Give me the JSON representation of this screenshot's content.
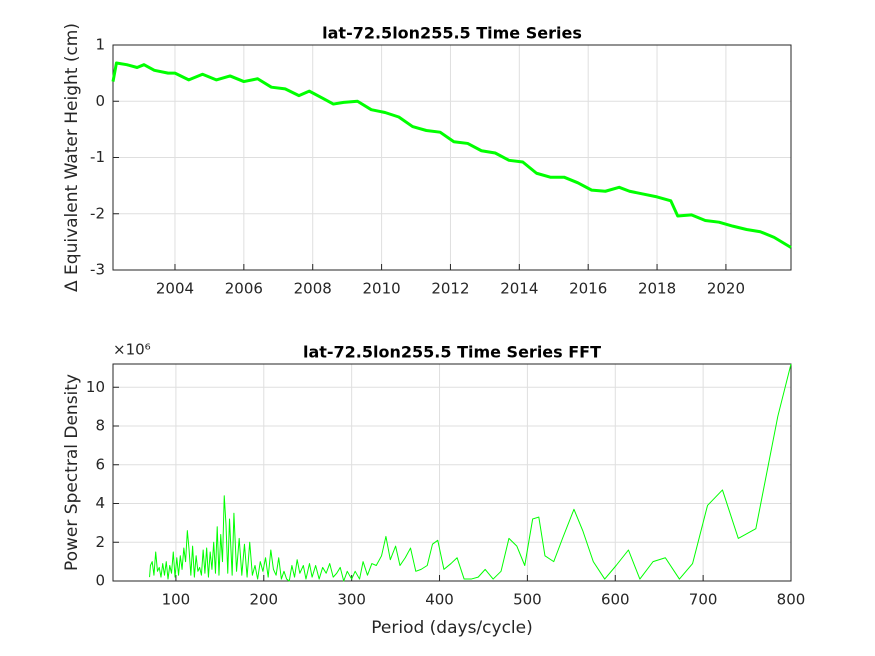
{
  "chart_data": [
    {
      "type": "line",
      "title": "lat-72.5lon255.5 Time Series",
      "ylabel": "Δ  Equivalent Water Height (cm)",
      "x": [
        2002.2,
        2002.3,
        2002.6,
        2002.9,
        2003.1,
        2003.4,
        2003.8,
        2004.0,
        2004.4,
        2004.8,
        2005.2,
        2005.6,
        2006.0,
        2006.4,
        2006.8,
        2007.2,
        2007.6,
        2007.9,
        2008.3,
        2008.6,
        2008.9,
        2009.3,
        2009.7,
        2010.1,
        2010.5,
        2010.9,
        2011.3,
        2011.7,
        2012.1,
        2012.5,
        2012.9,
        2013.3,
        2013.7,
        2014.1,
        2014.5,
        2014.9,
        2015.3,
        2015.7,
        2016.1,
        2016.5,
        2016.9,
        2017.2,
        2017.6,
        2018.0,
        2018.4,
        2018.6,
        2019.0,
        2019.4,
        2019.8,
        2020.2,
        2020.6,
        2021.0,
        2021.4,
        2021.89
      ],
      "series": [
        {
          "color": "#00ff00",
          "values": [
            0.35,
            0.68,
            0.65,
            0.6,
            0.65,
            0.55,
            0.5,
            0.5,
            0.38,
            0.48,
            0.38,
            0.45,
            0.35,
            0.4,
            0.25,
            0.22,
            0.1,
            0.18,
            0.05,
            -0.05,
            -0.02,
            0.0,
            -0.15,
            -0.2,
            -0.28,
            -0.45,
            -0.52,
            -0.55,
            -0.72,
            -0.75,
            -0.88,
            -0.92,
            -1.05,
            -1.08,
            -1.28,
            -1.35,
            -1.35,
            -1.45,
            -1.58,
            -1.6,
            -1.53,
            -1.6,
            -1.65,
            -1.7,
            -1.77,
            -2.04,
            -2.02,
            -2.12,
            -2.15,
            -2.22,
            -2.28,
            -2.32,
            -2.42,
            -2.6
          ]
        }
      ],
      "xlim": [
        2002.2,
        2021.89
      ],
      "xticks": [
        2004,
        2006,
        2008,
        2010,
        2012,
        2014,
        2016,
        2018,
        2020
      ],
      "ylim": [
        -3,
        1
      ],
      "yticks": [
        -3,
        -2,
        -1,
        0,
        1
      ],
      "grid": true
    },
    {
      "type": "line",
      "title": "lat-72.5lon255.5 Time Series FFT",
      "xlabel": "Period (days/cycle)",
      "ylabel": "Power Spectral Density",
      "y_exponent_label": "×10⁶",
      "x": [
        70,
        71,
        73,
        75,
        77,
        79,
        81,
        83,
        85,
        87,
        89,
        91,
        93,
        95,
        97,
        99,
        101,
        103,
        105,
        107,
        109,
        111,
        113,
        115,
        117,
        119,
        121,
        123,
        125,
        127,
        129,
        131,
        133,
        135,
        137,
        139,
        141,
        143,
        145,
        147,
        149,
        151,
        153,
        155,
        157,
        159,
        161,
        164,
        166,
        169,
        172,
        175,
        178,
        181,
        184,
        187,
        190,
        193,
        196,
        199,
        202,
        205,
        208,
        211,
        214,
        217,
        220,
        223,
        226,
        229,
        232,
        235,
        238,
        241,
        245,
        248,
        252,
        255,
        259,
        263,
        267,
        271,
        275,
        279,
        283,
        287,
        291,
        295,
        300,
        304,
        309,
        313,
        318,
        323,
        328,
        334,
        339,
        344,
        350,
        355,
        361,
        367,
        373,
        379,
        386,
        392,
        398,
        405,
        413,
        420,
        428,
        436,
        444,
        452,
        461,
        470,
        479,
        488,
        497,
        506,
        513,
        520,
        530,
        540,
        553,
        563,
        575,
        588,
        601,
        615,
        628,
        643,
        657,
        673,
        688,
        705,
        722,
        740,
        760,
        785,
        800
      ],
      "series": [
        {
          "color": "#00ff00",
          "values": [
            0.2,
            0.8,
            1.0,
            0.3,
            1.5,
            0.5,
            0.7,
            0.2,
            0.9,
            0.3,
            1.0,
            0.1,
            0.8,
            0.4,
            1.5,
            0.2,
            1.2,
            0.3,
            1.3,
            0.6,
            1.7,
            1.0,
            2.6,
            1.6,
            0.3,
            1.8,
            0.2,
            1.3,
            0.5,
            0.7,
            0.3,
            1.6,
            0.4,
            1.7,
            0.2,
            1.5,
            0.6,
            2.0,
            0.4,
            2.8,
            0.3,
            2.4,
            1.0,
            4.4,
            2.9,
            0.4,
            3.2,
            0.3,
            3.5,
            0.5,
            2.2,
            0.3,
            1.9,
            0.2,
            2.0,
            0.3,
            0.8,
            0.1,
            1.0,
            0.5,
            1.2,
            0.2,
            1.6,
            0.6,
            0.3,
            1.2,
            0.1,
            0.5,
            0.1,
            0.0,
            0.8,
            0.2,
            1.1,
            0.4,
            0.8,
            0.1,
            0.9,
            0.2,
            0.8,
            0.1,
            0.7,
            0.4,
            0.9,
            0.2,
            0.4,
            0.7,
            0.0,
            0.5,
            0.1,
            0.5,
            0.1,
            1.0,
            0.3,
            0.9,
            0.8,
            1.3,
            2.3,
            1.1,
            1.8,
            0.8,
            1.2,
            1.7,
            0.5,
            0.6,
            0.8,
            1.9,
            2.1,
            0.6,
            0.9,
            1.2,
            0.1,
            0.1,
            0.2,
            0.6,
            0.1,
            0.5,
            2.2,
            1.8,
            0.8,
            3.2,
            3.3,
            1.3,
            1.0,
            2.2,
            3.7,
            2.6,
            1.0,
            0.1,
            0.8,
            1.6,
            0.1,
            1.0,
            1.2,
            0.1,
            0.9,
            3.9,
            4.7,
            2.2,
            2.7,
            8.5,
            11.2
          ]
        }
      ],
      "xlim": [
        28.4,
        800
      ],
      "xticks": [
        100,
        200,
        300,
        400,
        500,
        600,
        700,
        800
      ],
      "ylim": [
        0,
        11.2
      ],
      "yticks": [
        0,
        2,
        4,
        6,
        8,
        10
      ],
      "grid": true
    }
  ]
}
